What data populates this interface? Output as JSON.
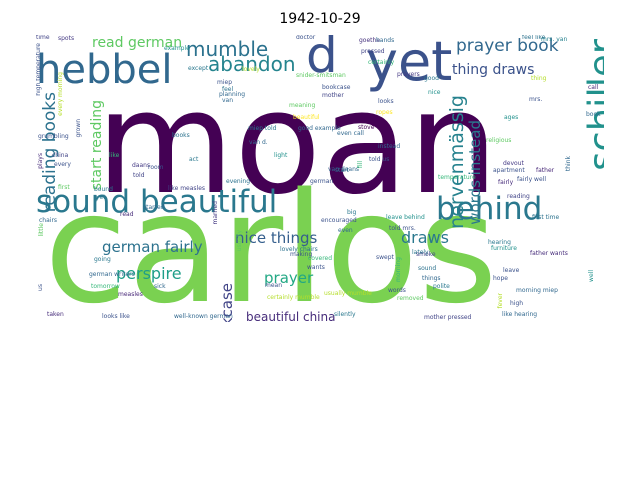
{
  "title": "1942-10-29",
  "words": [
    {
      "text": "moan",
      "color": "#440154"
    },
    {
      "text": "carlos",
      "color": "#7ad151"
    },
    {
      "text": "sound beautiful",
      "color": "#2a788e"
    },
    {
      "text": "yet",
      "color": "#3b528b"
    },
    {
      "text": "hebbel",
      "color": "#31688e"
    },
    {
      "text": "d",
      "color": "#3b528b"
    },
    {
      "text": "behind",
      "color": "#2a788e"
    },
    {
      "text": "schiller",
      "color": "#21918c"
    },
    {
      "text": "nervenmässig",
      "color": "#26828e"
    },
    {
      "text": "prayer book",
      "color": "#31688e"
    },
    {
      "text": "mumble",
      "color": "#2c728e"
    },
    {
      "text": "abandon",
      "color": "#25848e"
    },
    {
      "text": "reading books",
      "color": "#2c728e"
    },
    {
      "text": "words instead",
      "color": "#2a788e"
    },
    {
      "text": "start reading",
      "color": "#5ec962"
    },
    {
      "text": "read german",
      "color": "#5ec962"
    },
    {
      "text": "thing draws",
      "color": "#3b528b"
    },
    {
      "text": "german fairly",
      "color": "#2c728e"
    },
    {
      "text": "perspire",
      "color": "#1f9e89"
    },
    {
      "text": "nice things",
      "color": "#355f8d"
    },
    {
      "text": "draws",
      "color": "#2a788e"
    },
    {
      "text": "big bookcase",
      "color": "#414487"
    },
    {
      "text": "prayer",
      "color": "#22a884"
    },
    {
      "text": "beautiful china",
      "color": "#472d7b"
    },
    {
      "text": "lovely",
      "color": "#b5de2b"
    },
    {
      "text": "doctor",
      "color": "#3b528b"
    },
    {
      "text": "goethe",
      "color": "#46327e"
    },
    {
      "text": "hands",
      "color": "#31688e"
    },
    {
      "text": "feel like",
      "color": "#2c728e"
    },
    {
      "text": "mrs. van",
      "color": "#26828e"
    },
    {
      "text": "spots",
      "color": "#443983"
    },
    {
      "text": "example",
      "color": "#21918c"
    },
    {
      "text": "except",
      "color": "#2a788e"
    },
    {
      "text": "miep",
      "color": "#3b528b"
    },
    {
      "text": "planning",
      "color": "#31688e"
    },
    {
      "text": "pressed",
      "color": "#414487"
    },
    {
      "text": "certainly",
      "color": "#35b779"
    },
    {
      "text": "prayers",
      "color": "#443983"
    },
    {
      "text": "good",
      "color": "#2a788e"
    },
    {
      "text": "thing",
      "color": "#b5de2b"
    },
    {
      "text": "snider-smitsman",
      "color": "#5ec962"
    },
    {
      "text": "grumbling",
      "color": "#3b528b"
    },
    {
      "text": "feel",
      "color": "#2c728e"
    },
    {
      "text": "van",
      "color": "#31688e"
    },
    {
      "text": "bookcase",
      "color": "#3b528b"
    },
    {
      "text": "mother",
      "color": "#414487"
    },
    {
      "text": "nice",
      "color": "#21918c"
    },
    {
      "text": "call",
      "color": "#482878"
    },
    {
      "text": "mrs.",
      "color": "#3b528b"
    },
    {
      "text": "meaning",
      "color": "#5ec962"
    },
    {
      "text": "beautiful",
      "color": "#fde725"
    },
    {
      "text": "even call",
      "color": "#31688e"
    },
    {
      "text": "ropes",
      "color": "#fde725"
    },
    {
      "text": "ages",
      "color": "#21918c"
    },
    {
      "text": "book",
      "color": "#31688e"
    },
    {
      "text": "plays",
      "color": "#472d7b"
    },
    {
      "text": "like",
      "color": "#35b779"
    },
    {
      "text": "miep told",
      "color": "#2a788e"
    },
    {
      "text": "good example",
      "color": "#31688e"
    },
    {
      "text": "stove",
      "color": "#440154"
    },
    {
      "text": "looks",
      "color": "#3b528b"
    },
    {
      "text": "religious",
      "color": "#5ec962"
    },
    {
      "text": "books",
      "color": "#2c728e"
    },
    {
      "text": "act",
      "color": "#2a788e"
    },
    {
      "text": "van d.",
      "color": "#31688e"
    },
    {
      "text": "light",
      "color": "#21918c"
    },
    {
      "text": "instead",
      "color": "#31688e"
    },
    {
      "text": "told us",
      "color": "#3b528b"
    },
    {
      "text": "devout",
      "color": "#443983"
    },
    {
      "text": "apartment",
      "color": "#3b528b"
    },
    {
      "text": "fairly",
      "color": "#472d7b"
    },
    {
      "text": "think",
      "color": "#31688e"
    },
    {
      "text": "china",
      "color": "#414487"
    },
    {
      "text": "every",
      "color": "#3b528b"
    },
    {
      "text": "first",
      "color": "#5ec962"
    },
    {
      "text": "yet",
      "color": "#2a788e"
    },
    {
      "text": "daans",
      "color": "#443983"
    },
    {
      "text": "told",
      "color": "#414487"
    },
    {
      "text": "evening",
      "color": "#2c728e"
    },
    {
      "text": "german",
      "color": "#3b528b"
    },
    {
      "text": "start",
      "color": "#31688e"
    },
    {
      "text": "fill",
      "color": "#35b779"
    },
    {
      "text": "father",
      "color": "#482878"
    },
    {
      "text": "bound",
      "color": "#2a788e"
    },
    {
      "text": "like measles",
      "color": "#414487"
    },
    {
      "text": "temperature",
      "color": "#35b779"
    },
    {
      "text": "fairly well",
      "color": "#3b528b"
    },
    {
      "text": "first time",
      "color": "#2c728e"
    },
    {
      "text": "chairs",
      "color": "#31688e"
    },
    {
      "text": "read",
      "color": "#472d7b"
    },
    {
      "text": "started",
      "color": "#31688e"
    },
    {
      "text": "big",
      "color": "#2a788e"
    },
    {
      "text": "leave behind",
      "color": "#21918c"
    },
    {
      "text": "told mrs.",
      "color": "#3b528b"
    },
    {
      "text": "reading",
      "color": "#414487"
    },
    {
      "text": "encouraged",
      "color": "#3b528b"
    },
    {
      "text": "lately",
      "color": "#2a788e"
    },
    {
      "text": "little",
      "color": "#5ec962"
    },
    {
      "text": "german writers",
      "color": "#31688e"
    },
    {
      "text": "going",
      "color": "#2a788e"
    },
    {
      "text": "covered",
      "color": "#35b779"
    },
    {
      "text": "married",
      "color": "#443983"
    },
    {
      "text": "lovely chairs",
      "color": "#2c728e"
    },
    {
      "text": "making",
      "color": "#3b528b"
    },
    {
      "text": "hearing",
      "color": "#2a788e"
    },
    {
      "text": "father wants",
      "color": "#472d7b"
    },
    {
      "text": "wants",
      "color": "#3b528b"
    },
    {
      "text": "smoke",
      "color": "#414487"
    },
    {
      "text": "sound",
      "color": "#2c728e"
    },
    {
      "text": "furniture",
      "color": "#21918c"
    },
    {
      "text": "leave",
      "color": "#3b528b"
    },
    {
      "text": "things",
      "color": "#31688e"
    },
    {
      "text": "tomorrow",
      "color": "#35b779"
    },
    {
      "text": "measles",
      "color": "#482878"
    },
    {
      "text": "sick",
      "color": "#31688e"
    },
    {
      "text": "mean",
      "color": "#3b528b"
    },
    {
      "text": "certainly mumble",
      "color": "#b5de2b"
    },
    {
      "text": "usually mumble",
      "color": "#b5de2b"
    },
    {
      "text": "words",
      "color": "#3b528b"
    },
    {
      "text": "polite",
      "color": "#2a788e"
    },
    {
      "text": "removed",
      "color": "#5ec962"
    },
    {
      "text": "hope",
      "color": "#3b528b"
    },
    {
      "text": "morning miep",
      "color": "#31688e"
    },
    {
      "text": "fever",
      "color": "#b5de2b"
    },
    {
      "text": "high",
      "color": "#3b528b"
    },
    {
      "text": "taken",
      "color": "#472d7b"
    },
    {
      "text": "looks like",
      "color": "#3b528b"
    },
    {
      "text": "well-known german",
      "color": "#31688e"
    },
    {
      "text": "silently",
      "color": "#2a788e"
    },
    {
      "text": "mother pressed",
      "color": "#414487"
    },
    {
      "text": "like hearing",
      "color": "#31688e"
    },
    {
      "text": "high temperature",
      "color": "#3b528b"
    },
    {
      "text": "us",
      "color": "#3b528b"
    },
    {
      "text": "well",
      "color": "#21918c"
    },
    {
      "text": "every morning",
      "color": "#b5de2b"
    },
    {
      "text": "grown",
      "color": "#3b528b"
    },
    {
      "text": "usually",
      "color": "#5ec962"
    },
    {
      "text": "even",
      "color": "#31688e"
    },
    {
      "text": "morning",
      "color": "#35b779"
    },
    {
      "text": "swept",
      "color": "#3b528b"
    },
    {
      "text": "van daans",
      "color": "#31688e"
    },
    {
      "text": "room",
      "color": "#3b528b"
    },
    {
      "text": "time",
      "color": "#414487"
    }
  ]
}
